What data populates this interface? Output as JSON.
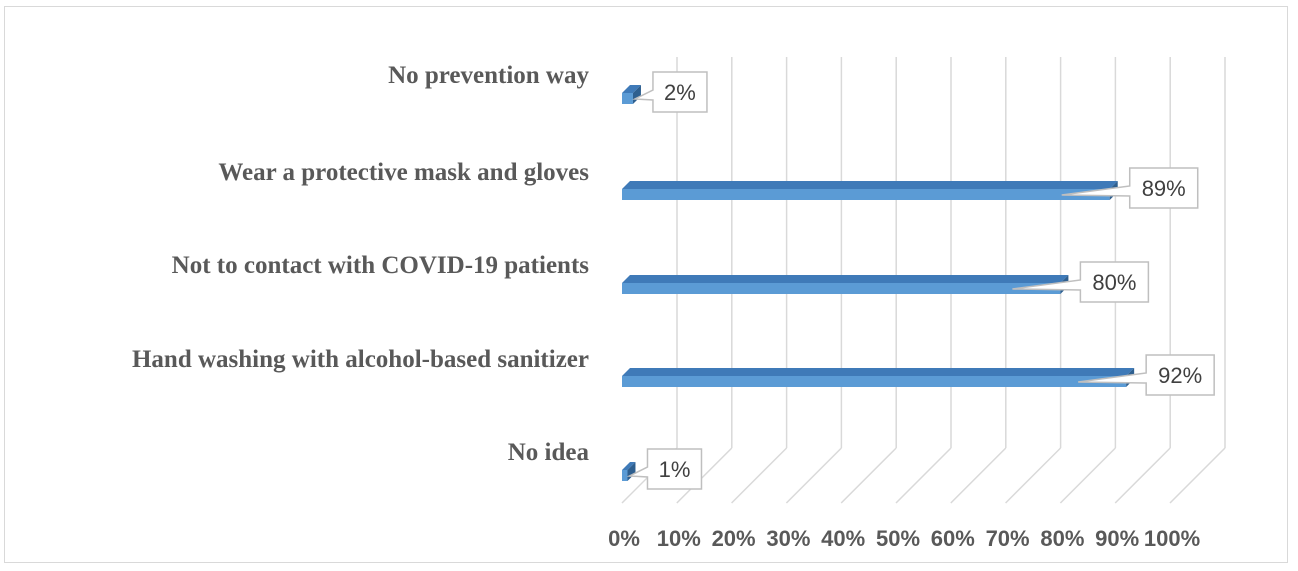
{
  "chart_data": {
    "type": "bar",
    "orientation": "horizontal",
    "categories": [
      "No prevention way",
      "Wear a protective mask and gloves",
      "Not to contact with COVID-19 patients",
      "Hand washing with alcohol-based sanitizer",
      "No idea"
    ],
    "values": [
      2,
      89,
      80,
      92,
      1
    ],
    "data_labels": [
      "2%",
      "89%",
      "80%",
      "92%",
      "1%"
    ],
    "xlim": [
      0,
      100
    ],
    "x_ticks": [
      "0%",
      "10%",
      "20%",
      "30%",
      "40%",
      "50%",
      "60%",
      "70%",
      "80%",
      "90%",
      "100%"
    ],
    "grid": true,
    "legend": "none",
    "style": "3d-clustered-bar",
    "colors": {
      "bar_front": "#5b9bd5",
      "bar_top": "#3f7ab8",
      "bar_side": "#2e5f8f",
      "grid": "#d9d9d9",
      "text": "#595959"
    }
  }
}
